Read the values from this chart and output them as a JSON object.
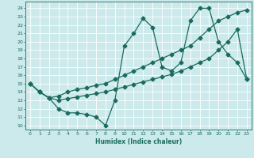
{
  "xlabel": "Humidex (Indice chaleur)",
  "bg_color": "#cce9eb",
  "grid_color": "#ffffff",
  "line_color": "#1a6b5e",
  "xlim": [
    -0.5,
    23.5
  ],
  "ylim": [
    9.5,
    24.8
  ],
  "yticks": [
    10,
    11,
    12,
    13,
    14,
    15,
    16,
    17,
    18,
    19,
    20,
    21,
    22,
    23,
    24
  ],
  "xticks": [
    0,
    1,
    2,
    3,
    4,
    5,
    6,
    7,
    8,
    9,
    10,
    11,
    12,
    13,
    14,
    15,
    16,
    17,
    18,
    19,
    20,
    21,
    22,
    23
  ],
  "line1_x": [
    0,
    1,
    2,
    3,
    4,
    5,
    6,
    7,
    8,
    9,
    10,
    11,
    12,
    13,
    14,
    15,
    16,
    17,
    18,
    19,
    20,
    21,
    22,
    23
  ],
  "line1_y": [
    15.0,
    14.0,
    13.3,
    12.0,
    11.5,
    11.5,
    11.3,
    11.0,
    10.0,
    13.0,
    19.5,
    21.0,
    22.8,
    21.7,
    17.0,
    16.5,
    17.5,
    22.5,
    24.0,
    24.0,
    20.0,
    18.5,
    17.5,
    15.5
  ],
  "line2_x": [
    0,
    1,
    2,
    3,
    4,
    5,
    6,
    7,
    8,
    9,
    10,
    11,
    12,
    13,
    14,
    15,
    16,
    17,
    18,
    19,
    20,
    21,
    22,
    23
  ],
  "line2_y": [
    15.0,
    14.0,
    13.3,
    13.5,
    14.0,
    14.3,
    14.5,
    14.8,
    15.0,
    15.5,
    16.0,
    16.5,
    17.0,
    17.5,
    18.0,
    18.5,
    19.0,
    19.5,
    20.5,
    21.5,
    22.5,
    23.0,
    23.5,
    23.8
  ],
  "line3_x": [
    0,
    1,
    2,
    3,
    4,
    5,
    6,
    7,
    8,
    9,
    10,
    11,
    12,
    13,
    14,
    15,
    16,
    17,
    18,
    19,
    20,
    21,
    22,
    23
  ],
  "line3_y": [
    15.0,
    14.0,
    13.3,
    13.0,
    13.2,
    13.4,
    13.6,
    13.8,
    14.0,
    14.3,
    14.6,
    14.9,
    15.2,
    15.5,
    15.8,
    16.1,
    16.5,
    17.0,
    17.5,
    18.0,
    19.0,
    20.0,
    21.5,
    15.5
  ]
}
